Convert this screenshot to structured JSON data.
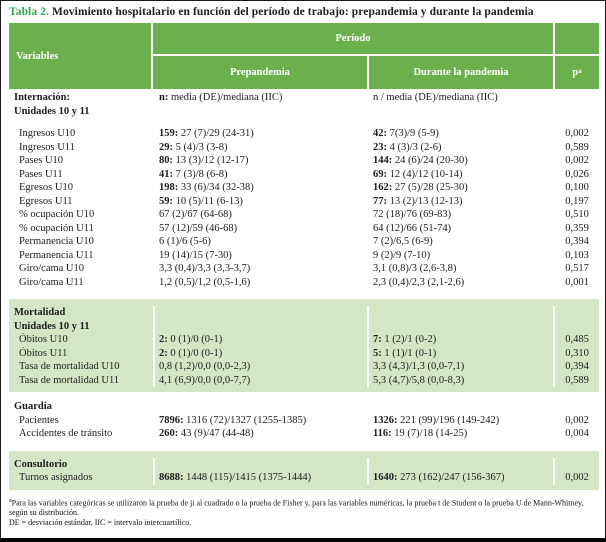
{
  "title": {
    "label": "Tabla 2.",
    "text": " Movimiento hospitalario en función del período de trabajo: prepandemia y durante la pandemia"
  },
  "colors": {
    "header_green": "#6cb04e",
    "band_green": "#d5e6c4",
    "title_green": "#2fa84c"
  },
  "header": {
    "variables": "Variables",
    "periodo": "Período",
    "prepandemia": "Prepandemia",
    "pandemia": "Durante la pandemia",
    "p": "p",
    "p_sup": "a"
  },
  "table": {
    "sections": [
      {
        "band": false,
        "title_lines": [
          "Internación:",
          "Unidades 10 y 11"
        ],
        "subhead_pre_bold": "n:",
        "subhead_pre": " media (DE)/mediana (IIC)",
        "subhead_pan": "n / media (DE)/mediana (IIC)",
        "gap_after_title": true,
        "rows": [
          {
            "label": "Ingresos U10",
            "pre_b": "159:",
            "pre": " 27 (7)/29 (24-31)",
            "pan_b": "42:",
            "pan": " 7(3)/9 (5-9)",
            "p": "0,002"
          },
          {
            "label": "Ingresos U11",
            "pre_b": "29:",
            "pre": " 5 (4)/3 (3-8)",
            "pan_b": "23:",
            "pan": " 4 (3)/3 (2-6)",
            "p": "0,589"
          },
          {
            "label": "Pases U10",
            "pre_b": "80:",
            "pre": " 13 (3)/12 (12-17)",
            "pan_b": "144:",
            "pan": " 24 (6)/24 (20-30)",
            "p": "0,002"
          },
          {
            "label": "Pases U11",
            "pre_b": "41:",
            "pre": " 7 (3)/8 (6-8)",
            "pan_b": "69:",
            "pan": " 12 (4)/12 (10-14)",
            "p": "0,026"
          },
          {
            "label": "Egresos U10",
            "pre_b": "198:",
            "pre": " 33 (6)/34 (32-38)",
            "pan_b": "162:",
            "pan": " 27 (5)/28 (25-30)",
            "p": "0,100"
          },
          {
            "label": "Egresos U11",
            "pre_b": "59:",
            "pre": " 10 (5)/11 (6-13)",
            "pan_b": "77:",
            "pan": " 13 (2)/13 (12-13)",
            "p": "0,197"
          },
          {
            "label": "% ocupación U10",
            "pre_b": "",
            "pre": "67 (2)/67 (64-68)",
            "pan_b": "",
            "pan": "72 (18)/76 (69-83)",
            "p": "0,510"
          },
          {
            "label": "% ocupación U11",
            "pre_b": "",
            "pre": "57 (12)/59 (46-68)",
            "pan_b": "",
            "pan": "64 (12)/66 (51-74)",
            "p": "0,359"
          },
          {
            "label": "Permanencia U10",
            "pre_b": "",
            "pre": "6 (1)/6 (5-6)",
            "pan_b": "",
            "pan": "7 (2)/6,5 (6-9)",
            "p": "0,394"
          },
          {
            "label": "Permanencia U11",
            "pre_b": "",
            "pre": "19 (14)/15 (7-30)",
            "pan_b": "",
            "pan": "9 (2)/9 (7-10)",
            "p": "0,103"
          },
          {
            "label": "Giro/cama U10",
            "pre_b": "",
            "pre": "3,3 (0,4)/3,3 (3,3-3,7)",
            "pan_b": "",
            "pan": "3,1 (0,8)/3 (2,6-3,8)",
            "p": "0,517"
          },
          {
            "label": "Giro/cama U11",
            "pre_b": "",
            "pre": "1,2 (0,5)/1,2 (0,5-1,6)",
            "pan_b": "",
            "pan": "2,3 (0,4)/2,3 (2,1-2,6)",
            "p": "0,001"
          }
        ]
      },
      {
        "band": true,
        "title_lines": [
          "Mortalidad",
          "Unidades 10 y 11"
        ],
        "subhead_pre_bold": "",
        "subhead_pre": "",
        "subhead_pan": "",
        "gap_after_title": false,
        "rows": [
          {
            "label": "Óbitos U10",
            "pre_b": "2:",
            "pre": " 0 (1)/0 (0-1)",
            "pan_b": "7:",
            "pan": " 1 (2)/1 (0-2)",
            "p": "0,485"
          },
          {
            "label": "Óbitos U11",
            "pre_b": "2:",
            "pre": " 0 (1)/0 (0-1)",
            "pan_b": "5:",
            "pan": " 1 (1)/1 (0-1)",
            "p": "0,310"
          },
          {
            "label": "Tasa de mortalidad U10",
            "pre_b": "",
            "pre": "0,8 (1,2)/0,0 (0,0-2,3)",
            "pan_b": "",
            "pan": "3,3 (4,3)/1,3 (0,0-7,1)",
            "p": "0,394"
          },
          {
            "label": "Tasa de mortalidad U11",
            "pre_b": "",
            "pre": "4,1 (6,9)/0,0 (0,0-7,7)",
            "pan_b": "",
            "pan": "5,3 (4,7)/5,8 (0,0-8,3)",
            "p": "0,589"
          }
        ]
      },
      {
        "band": false,
        "title_lines": [
          "Guardia"
        ],
        "subhead_pre_bold": "",
        "subhead_pre": "",
        "subhead_pan": "",
        "gap_after_title": false,
        "rows": [
          {
            "label": "Pacientes",
            "pre_b": "7896:",
            "pre": " 1316 (72)/1327 (1255-1385)",
            "pan_b": "1326:",
            "pan": " 221 (99)/196 (149-242)",
            "p": "0,002"
          },
          {
            "label": "Accidentes de tránsito",
            "pre_b": "260:",
            "pre": " 43 (9)/47 (44-48)",
            "pan_b": "116:",
            "pan": " 19 (7)/18 (14-25)",
            "p": "0,004"
          }
        ]
      },
      {
        "band": true,
        "title_lines": [
          "Consultorio"
        ],
        "subhead_pre_bold": "",
        "subhead_pre": "",
        "subhead_pan": "",
        "gap_after_title": false,
        "rows": [
          {
            "label": "Turnos asignados",
            "pre_b": "8688:",
            "pre": " 1448 (115)/1415 (1375-1444)",
            "pan_b": "1640:",
            "pan": " 273 (162)/247 (156-367)",
            "p": "0,002"
          }
        ]
      }
    ]
  },
  "footnotes": {
    "sup1": "a",
    "line1": "Para las variables categóricas se utilizaron la prueba de ji al cuadrado o la prueba de Fisher y, para las variables numéricas, la prueba t de Student o la prueba U de Mann-Whitney, según su distribución.",
    "line2": "DE = desviación estándar, IIC = intervalo intercuartílico."
  }
}
